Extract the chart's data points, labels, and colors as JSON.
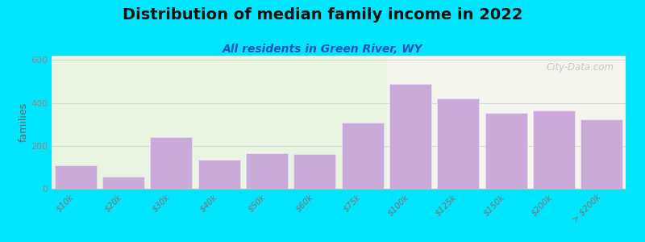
{
  "title": "Distribution of median family income in 2022",
  "subtitle": "All residents in Green River, WY",
  "xlabel": "",
  "ylabel": "families",
  "categories": [
    "$10k",
    "$20k",
    "$30k",
    "$40k",
    "$50k",
    "$60k",
    "$75k",
    "$100k",
    "$125k",
    "$150k",
    "$200k",
    "> $200k"
  ],
  "values": [
    110,
    55,
    240,
    135,
    165,
    160,
    310,
    490,
    420,
    355,
    365,
    325
  ],
  "bar_color": "#c9aad8",
  "bar_edge_color": "#e8e0ee",
  "background_outer": "#00e5ff",
  "plot_bg_left": "#eaf4e2",
  "plot_bg_right": "#f5f5f0",
  "ylim": [
    0,
    620
  ],
  "yticks": [
    0,
    200,
    400,
    600
  ],
  "title_fontsize": 14,
  "subtitle_fontsize": 10,
  "ylabel_fontsize": 9,
  "watermark_text": "City-Data.com",
  "split_bar_index": 6.5
}
